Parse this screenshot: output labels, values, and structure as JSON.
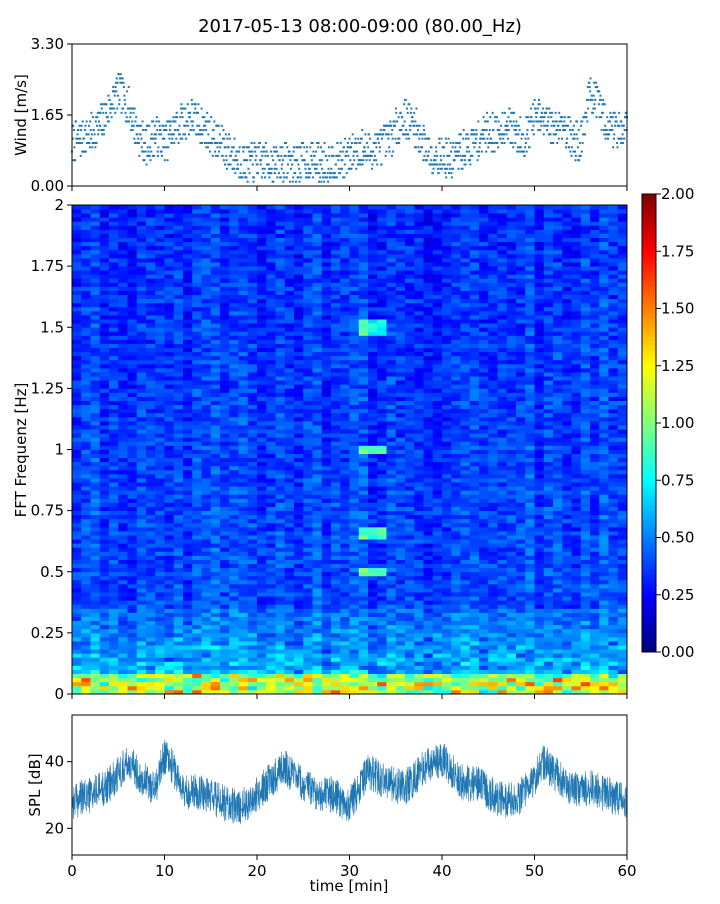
{
  "figure": {
    "title": "2017-05-13 08:00-09:00 (80.00_Hz)"
  },
  "chart_data": [
    {
      "id": "wind",
      "type": "scatter",
      "ylabel": "Wind [m/s]",
      "xlabel": "",
      "xlim": [
        0,
        60
      ],
      "ylim": [
        0,
        3.3
      ],
      "yticks": [
        0.0,
        1.65,
        3.3
      ],
      "ytick_labels": [
        "0.00",
        "1.65",
        "3.30"
      ],
      "xticks": [
        0,
        10,
        20,
        30,
        40,
        50,
        60
      ],
      "color": "#1f77b4",
      "series": [
        {
          "x": [
            0,
            1,
            2,
            3,
            4,
            5,
            6,
            7,
            8,
            9,
            10,
            11,
            12,
            13,
            14,
            15,
            16,
            17,
            18,
            19,
            20,
            21,
            22,
            23,
            24,
            25,
            26,
            27,
            28,
            29,
            30,
            31,
            32,
            33,
            34,
            35,
            36,
            37,
            38,
            39,
            40,
            41,
            42,
            43,
            44,
            45,
            46,
            47,
            48,
            49,
            50,
            51,
            52,
            53,
            54,
            55,
            56,
            57,
            58,
            59,
            60
          ],
          "y": [
            1.0,
            1.1,
            1.2,
            1.4,
            1.8,
            2.2,
            1.9,
            1.3,
            0.9,
            1.2,
            1.0,
            1.3,
            1.5,
            1.6,
            1.4,
            1.2,
            1.0,
            0.8,
            0.6,
            0.5,
            0.6,
            0.6,
            0.5,
            0.6,
            0.5,
            0.6,
            0.6,
            0.5,
            0.6,
            0.6,
            0.7,
            0.9,
            0.8,
            0.9,
            1.0,
            1.3,
            1.6,
            1.4,
            1.0,
            0.7,
            0.7,
            0.6,
            0.8,
            0.9,
            1.1,
            1.3,
            1.2,
            1.5,
            1.2,
            1.1,
            1.6,
            1.5,
            1.3,
            1.5,
            1.1,
            1.0,
            2.2,
            1.8,
            1.4,
            1.3,
            1.5
          ]
        }
      ]
    },
    {
      "id": "spectrogram",
      "type": "heatmap",
      "ylabel": "FFT Frequenz [Hz]",
      "xlabel": "",
      "xlim": [
        0,
        60
      ],
      "ylim": [
        0,
        2
      ],
      "yticks": [
        0,
        0.25,
        0.5,
        0.75,
        1,
        1.25,
        1.5,
        1.75,
        2
      ],
      "ytick_labels": [
        "0",
        "0.25",
        "0.5",
        "0.75",
        "1",
        "1.25",
        "1.5",
        "1.75",
        "2"
      ],
      "xticks": [
        0,
        10,
        20,
        30,
        40,
        50,
        60
      ],
      "colormap": "jet",
      "colorbar": {
        "range": [
          0,
          2
        ],
        "ticks": [
          0.0,
          0.25,
          0.5,
          0.75,
          1.0,
          1.25,
          1.5,
          1.75,
          2.0
        ],
        "tick_labels": [
          "0.00",
          "0.25",
          "0.50",
          "0.75",
          "1.00",
          "1.25",
          "1.50",
          "1.75",
          "2.00"
        ]
      }
    },
    {
      "id": "spl",
      "type": "line",
      "ylabel": "SPL [dB]",
      "xlabel": "time [min]",
      "xlim": [
        0,
        60
      ],
      "ylim": [
        12,
        54
      ],
      "yticks": [
        20,
        40
      ],
      "ytick_labels": [
        "20",
        "40"
      ],
      "xticks": [
        0,
        10,
        20,
        30,
        40,
        50,
        60
      ],
      "xtick_labels": [
        "0",
        "10",
        "20",
        "30",
        "40",
        "50",
        "60"
      ],
      "color": "#1f77b4",
      "series": [
        {
          "x": [
            0,
            2,
            4,
            6,
            8,
            9,
            10,
            11,
            12,
            14,
            16,
            18,
            20,
            22,
            23,
            24,
            26,
            28,
            30,
            32,
            34,
            36,
            38,
            40,
            42,
            44,
            46,
            48,
            50,
            51,
            52,
            54,
            56,
            58,
            60
          ],
          "y": [
            28,
            30,
            33,
            40,
            34,
            32,
            42,
            38,
            31,
            31,
            28,
            26,
            30,
            36,
            39,
            35,
            31,
            30,
            27,
            37,
            34,
            32,
            38,
            41,
            34,
            33,
            29,
            28,
            35,
            40,
            37,
            32,
            32,
            30,
            28
          ]
        }
      ]
    }
  ]
}
